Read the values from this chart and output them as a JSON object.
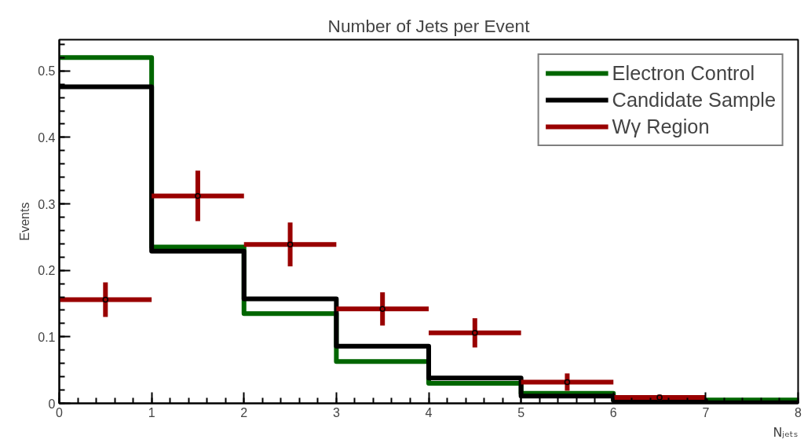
{
  "chart_data": {
    "type": "histogram",
    "title": "Number of Jets per Event",
    "xlabel": "Nⱼₑₜₛ",
    "ylabel": "Events",
    "bins": [
      0,
      1,
      2,
      3,
      4,
      5,
      6,
      7,
      8
    ],
    "series": [
      {
        "name": "Electron Control",
        "color": "#006600",
        "values": [
          0.52,
          0.235,
          0.135,
          0.063,
          0.03,
          0.015,
          0.005,
          0.005
        ]
      },
      {
        "name": "Candidate Sample",
        "color": "#000000",
        "values": [
          0.476,
          0.229,
          0.157,
          0.086,
          0.038,
          0.011,
          0.004,
          0.001
        ]
      },
      {
        "name": "Wγ Region",
        "color": "#990000",
        "type": "scatter",
        "marker": "circle",
        "x": [
          0.5,
          1.5,
          2.5,
          3.5,
          4.5,
          5.5,
          6.5
        ],
        "values": [
          0.156,
          0.312,
          0.239,
          0.142,
          0.106,
          0.032,
          0.009
        ],
        "errors": [
          0.026,
          0.038,
          0.033,
          0.025,
          0.022,
          0.013,
          0.004
        ],
        "xerrors": [
          0.5,
          0.5,
          0.5,
          0.5,
          0.5,
          0.5,
          0.5
        ]
      }
    ],
    "xlim": [
      0,
      8
    ],
    "ylim": [
      0,
      0.547
    ],
    "xticks": [
      0,
      1,
      2,
      3,
      4,
      5,
      6,
      7,
      8
    ],
    "yticks": [
      0,
      0.1,
      0.2,
      0.3,
      0.4,
      0.5
    ],
    "grid": false,
    "legend": "top right"
  }
}
